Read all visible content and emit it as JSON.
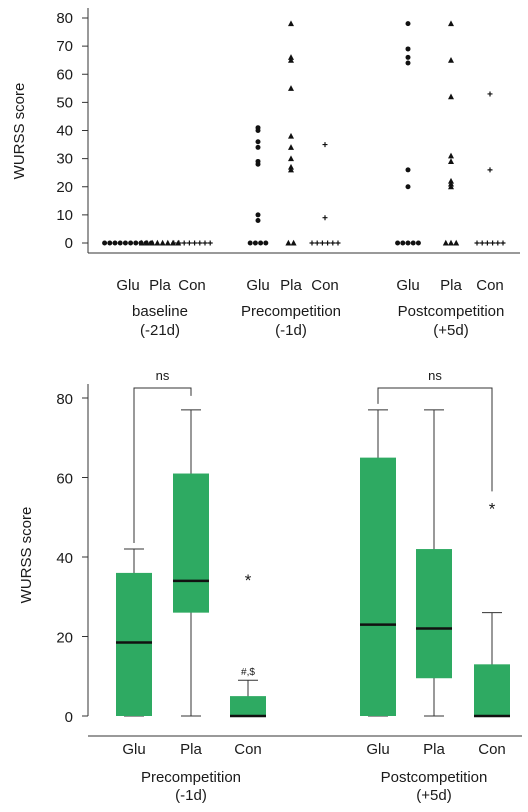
{
  "chart_data": [
    {
      "type": "scatter",
      "ylabel": "WURSS score",
      "ylim": [
        0,
        80
      ],
      "yticks": [
        0,
        10,
        20,
        30,
        40,
        50,
        60,
        70,
        80
      ],
      "group_labels": [
        "Glu",
        "Pla",
        "Con"
      ],
      "timepoints": [
        {
          "label": "baseline",
          "sub": "(-21d)"
        },
        {
          "label": "Precompetition",
          "sub": "(-1d)"
        },
        {
          "label": "Postcompetition",
          "sub": "(+5d)"
        }
      ],
      "series": [
        {
          "name": "Glu",
          "marker": "circle",
          "values": [
            [
              0,
              0,
              0,
              0,
              0,
              0,
              0,
              0,
              0,
              0
            ],
            [
              41,
              40,
              36,
              34,
              29,
              28,
              10,
              8,
              0,
              0,
              0,
              0
            ],
            [
              78,
              69,
              66,
              64,
              26,
              20,
              0,
              0,
              0,
              0,
              0
            ]
          ]
        },
        {
          "name": "Pla",
          "marker": "triangle",
          "values": [
            [
              0,
              0,
              0,
              0,
              0,
              0,
              0,
              0
            ],
            [
              78,
              66,
              65,
              55,
              38,
              34,
              30,
              27,
              26,
              0,
              0
            ],
            [
              78,
              65,
              52,
              31,
              29,
              22,
              21,
              20,
              0,
              0,
              0
            ]
          ]
        },
        {
          "name": "Con",
          "marker": "plus",
          "values": [
            [
              0,
              0,
              0,
              0,
              0,
              0,
              0,
              0
            ],
            [
              35,
              9,
              0,
              0,
              0,
              0,
              0,
              0
            ],
            [
              53,
              26,
              0,
              0,
              0,
              0,
              0,
              0
            ]
          ]
        }
      ]
    },
    {
      "type": "box",
      "ylabel": "WURSS score",
      "ylim": [
        0,
        85
      ],
      "yticks": [
        0,
        20,
        40,
        60,
        80
      ],
      "color": "#2eaa62",
      "groups": [
        {
          "label": "Precompetition",
          "sub": "(-1d)",
          "boxes": [
            {
              "name": "Glu",
              "min": 0,
              "q1": 0,
              "median": 18.5,
              "q3": 36,
              "max": 42
            },
            {
              "name": "Pla",
              "min": 0,
              "q1": 26,
              "median": 34,
              "q3": 61,
              "max": 77
            },
            {
              "name": "Con",
              "min": 0,
              "q1": 0,
              "median": 0,
              "q3": 5,
              "max": 9,
              "outlier": 35,
              "note": "#,$"
            }
          ],
          "bracket": {
            "from": 0,
            "to": 1,
            "label": "ns"
          }
        },
        {
          "label": "Postcompetition",
          "sub": "(+5d)",
          "boxes": [
            {
              "name": "Glu",
              "min": 0,
              "q1": 0,
              "median": 23,
              "q3": 65,
              "max": 77
            },
            {
              "name": "Pla",
              "min": 0,
              "q1": 9.5,
              "median": 22,
              "q3": 42,
              "max": 77
            },
            {
              "name": "Con",
              "min": 0,
              "q1": 0,
              "median": 0,
              "q3": 13,
              "max": 26,
              "outlier": 53
            }
          ],
          "bracket": {
            "from": 0,
            "to": 2,
            "label": "ns"
          }
        }
      ]
    }
  ]
}
